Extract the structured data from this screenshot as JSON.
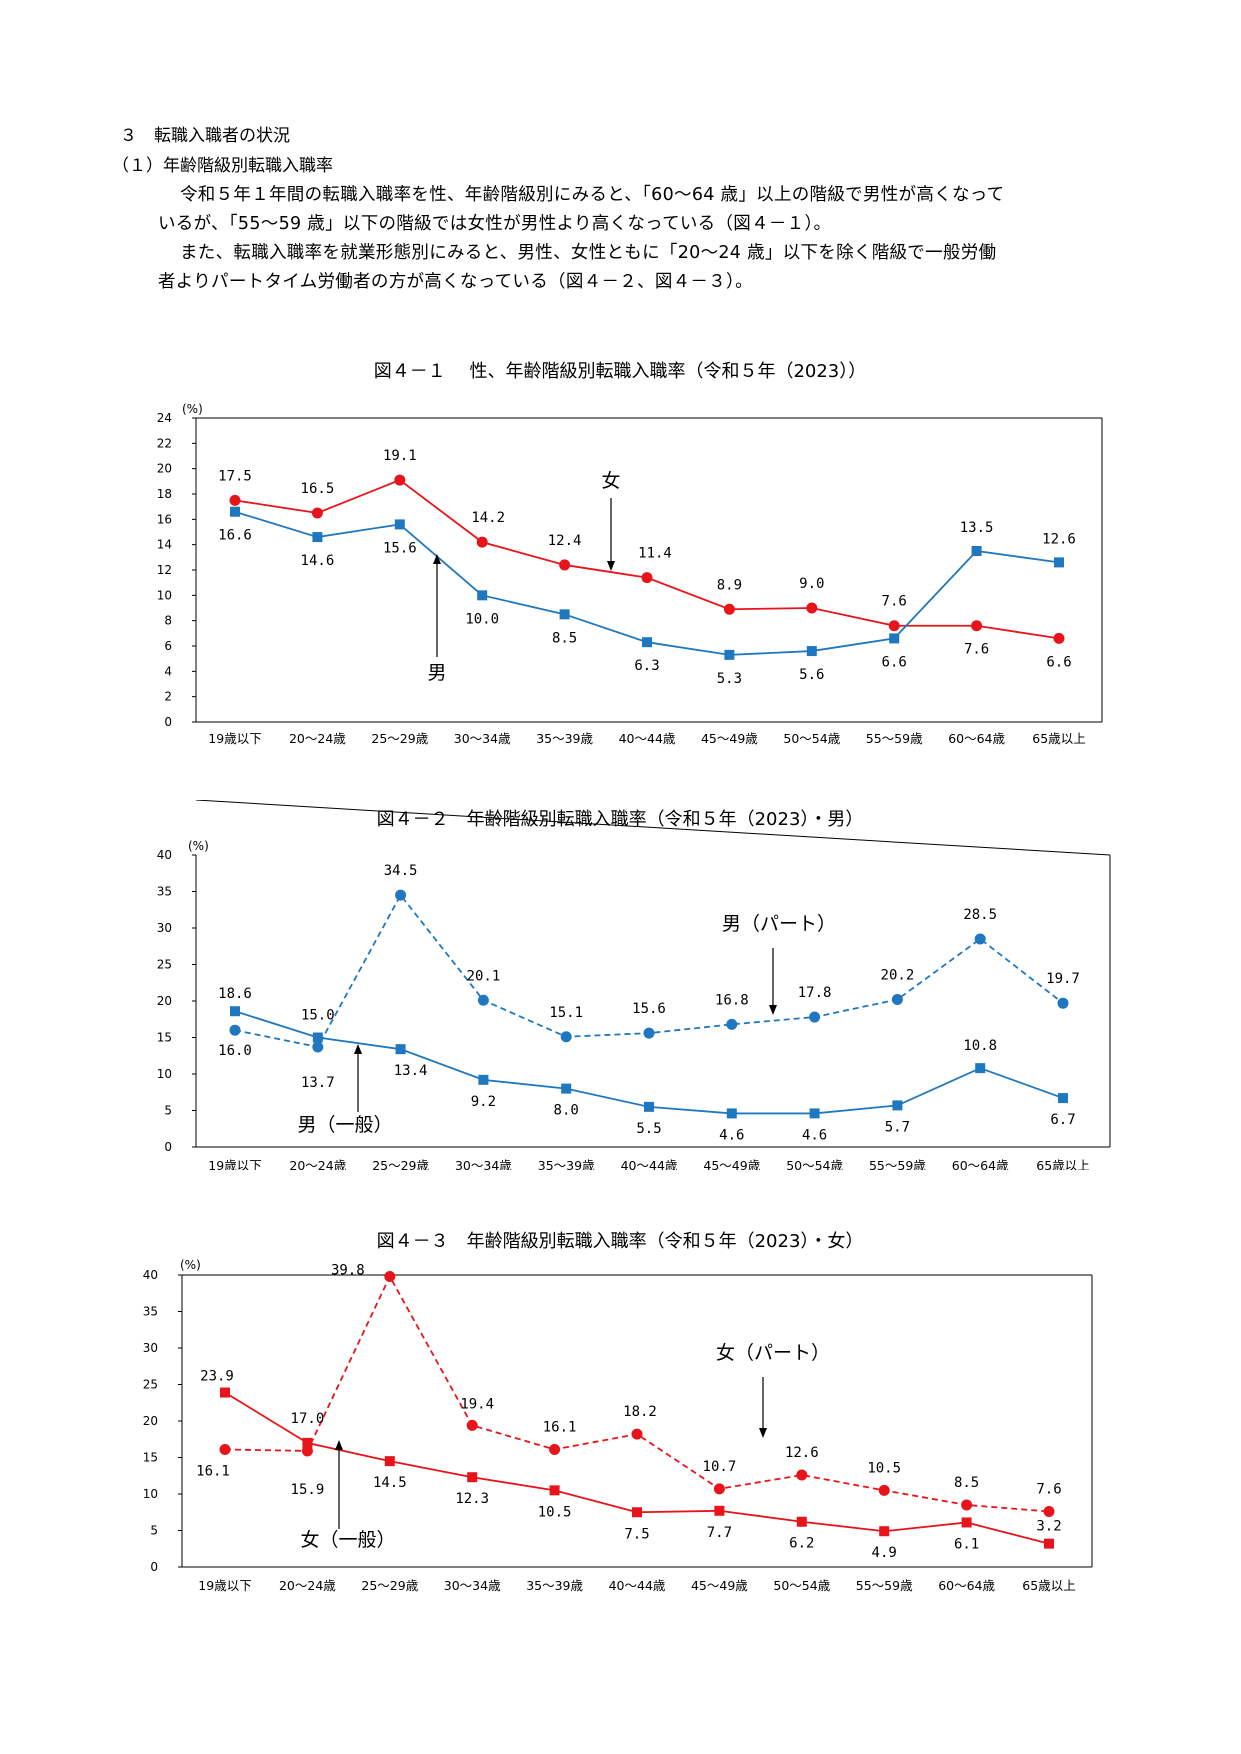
{
  "section": {
    "heading": "３　転職入職者の状況",
    "subheading": "（１）年齢階級別転職入職率",
    "paragraphs": [
      "令和５年１年間の転職入職率を性、年齢階級別にみると、「60～64 歳」以上の階級で男性が高くなって",
      "いるが、「55～59 歳」以下の階級では女性が男性より高くなっている（図４－１）。",
      "また、転職入職率を就業形態別にみると、男性、女性ともに「20～24 歳」以下を除く階級で一般労働",
      "者よりパートタイム労働者の方が高くなっている（図４－２、図４－３）。"
    ]
  },
  "chart_data": [
    {
      "type": "line",
      "title": "図４－１　 性、年齢階級別転職入職率（令和５年（2023））",
      "ylabel": "(%)",
      "ylim": [
        0,
        24
      ],
      "yticks": [
        0,
        2,
        4,
        6,
        8,
        10,
        12,
        14,
        16,
        18,
        20,
        22,
        24
      ],
      "categories": [
        "19歳以下",
        "20～24歳",
        "25～29歳",
        "30～34歳",
        "35～39歳",
        "40～44歳",
        "45～49歳",
        "50～54歳",
        "55～59歳",
        "60～64歳",
        "65歳以上"
      ],
      "series": [
        {
          "name": "女",
          "color": "#e8141b",
          "marker": "circle",
          "dashed": false,
          "label_pos": "above",
          "values": [
            17.5,
            16.5,
            19.1,
            14.2,
            12.4,
            11.4,
            8.9,
            9.0,
            7.6,
            7.6,
            6.6
          ],
          "labels": [
            "17.5",
            "16.5",
            "19.1",
            "14.2",
            "12.4",
            "11.4",
            "8.9",
            "9.0",
            "7.6",
            "7.6",
            "6.6"
          ]
        },
        {
          "name": "男",
          "color": "#1f78bf",
          "marker": "square",
          "dashed": false,
          "label_pos": "below",
          "values": [
            16.6,
            14.6,
            15.6,
            10.0,
            8.5,
            6.3,
            5.3,
            5.6,
            6.6,
            13.5,
            12.6
          ],
          "labels": [
            "16.6",
            "14.6",
            "15.6",
            "10.0",
            "8.5",
            "6.3",
            "5.3",
            "5.6",
            "6.6",
            "13.5",
            "12.6"
          ]
        }
      ],
      "annotations": [
        "女",
        "男"
      ]
    },
    {
      "type": "line",
      "title": "図４－２　年齢階級別転職入職率（令和５年（2023）・男）",
      "ylabel": "(%)",
      "ylim": [
        0,
        40
      ],
      "yticks": [
        0,
        5,
        10,
        15,
        20,
        25,
        30,
        35,
        40
      ],
      "categories": [
        "19歳以下",
        "20～24歳",
        "25～29歳",
        "30～34歳",
        "35～39歳",
        "40～44歳",
        "45～49歳",
        "50～54歳",
        "55～59歳",
        "60～64歳",
        "65歳以上"
      ],
      "series": [
        {
          "name": "男（一般）",
          "color": "#1f78bf",
          "marker": "square",
          "dashed": false,
          "values": [
            18.6,
            15.0,
            13.4,
            9.2,
            8.0,
            5.5,
            4.6,
            4.6,
            5.7,
            10.8,
            6.7
          ],
          "labels": [
            "18.6",
            "15.0",
            "13.4",
            "9.2",
            "8.0",
            "5.5",
            "4.6",
            "4.6",
            "5.7",
            "10.8",
            "6.7"
          ]
        },
        {
          "name": "男（パート）",
          "color": "#1f78bf",
          "marker": "circle",
          "dashed": true,
          "values": [
            16.0,
            13.7,
            34.5,
            20.1,
            15.1,
            15.6,
            16.8,
            17.8,
            20.2,
            28.5,
            19.7
          ],
          "labels": [
            "16.0",
            "13.7",
            "34.5",
            "20.1",
            "15.1",
            "15.6",
            "16.8",
            "17.8",
            "20.2",
            "28.5",
            "19.7"
          ]
        }
      ],
      "annotations": [
        "男（パート）",
        "男（一般）"
      ]
    },
    {
      "type": "line",
      "title": "図４－３　年齢階級別転職入職率（令和５年（2023）・女）",
      "ylabel": "(%)",
      "ylim": [
        0,
        40
      ],
      "yticks": [
        0,
        5,
        10,
        15,
        20,
        25,
        30,
        35,
        40
      ],
      "categories": [
        "19歳以下",
        "20～24歳",
        "25～29歳",
        "30～34歳",
        "35～39歳",
        "40～44歳",
        "45～49歳",
        "50～54歳",
        "55～59歳",
        "60～64歳",
        "65歳以上"
      ],
      "series": [
        {
          "name": "女（一般）",
          "color": "#e8141b",
          "marker": "square",
          "dashed": false,
          "values": [
            23.9,
            17.0,
            14.5,
            12.3,
            10.5,
            7.5,
            7.7,
            6.2,
            4.9,
            6.1,
            3.2
          ],
          "labels": [
            "23.9",
            "17.0",
            "14.5",
            "12.3",
            "10.5",
            "7.5",
            "7.7",
            "6.2",
            "4.9",
            "6.1",
            "3.2"
          ]
        },
        {
          "name": "女（パート）",
          "color": "#e8141b",
          "marker": "circle",
          "dashed": true,
          "values": [
            16.1,
            15.9,
            39.8,
            19.4,
            16.1,
            18.2,
            10.7,
            12.6,
            10.5,
            8.5,
            7.6
          ],
          "labels": [
            "16.1",
            "15.9",
            "39.8",
            "19.4",
            "16.1",
            "18.2",
            "10.7",
            "12.6",
            "10.5",
            "8.5",
            "7.6"
          ]
        }
      ],
      "annotations": [
        "女（パート）",
        "女（一般）"
      ]
    }
  ]
}
